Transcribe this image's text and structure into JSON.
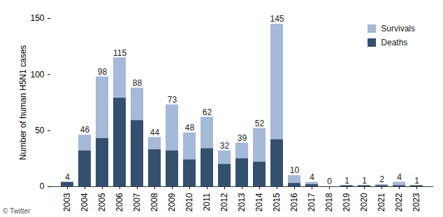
{
  "chart_data": {
    "type": "bar",
    "stacked": true,
    "y_label": "Number of human H5N1 cases",
    "caption": "© Twitter",
    "categories": [
      "2003",
      "2004",
      "2005",
      "2006",
      "2007",
      "2008",
      "2009",
      "2010",
      "2011",
      "2012",
      "2013",
      "2014",
      "2015",
      "2016",
      "2017",
      "2018",
      "2019",
      "2020",
      "2021",
      "2022",
      "2023"
    ],
    "series": [
      {
        "name": "Survivals",
        "color": "#a5b9d8",
        "values": [
          0,
          14,
          55,
          36,
          29,
          11,
          41,
          24,
          28,
          12,
          14,
          30,
          103,
          7,
          2,
          0,
          0,
          0,
          1,
          3,
          0
        ]
      },
      {
        "name": "Deaths",
        "color": "#33506f",
        "values": [
          4,
          32,
          43,
          79,
          59,
          33,
          32,
          24,
          34,
          20,
          25,
          22,
          42,
          3,
          2,
          0,
          1,
          1,
          1,
          1,
          1
        ]
      }
    ],
    "totals": [
      4,
      46,
      98,
      115,
      88,
      44,
      73,
      48,
      62,
      32,
      39,
      52,
      145,
      10,
      4,
      0,
      1,
      1,
      2,
      4,
      1
    ],
    "ylim": [
      0,
      150
    ],
    "yticks": [
      0,
      50,
      100,
      150
    ],
    "grid": false,
    "legend": "top-right"
  }
}
